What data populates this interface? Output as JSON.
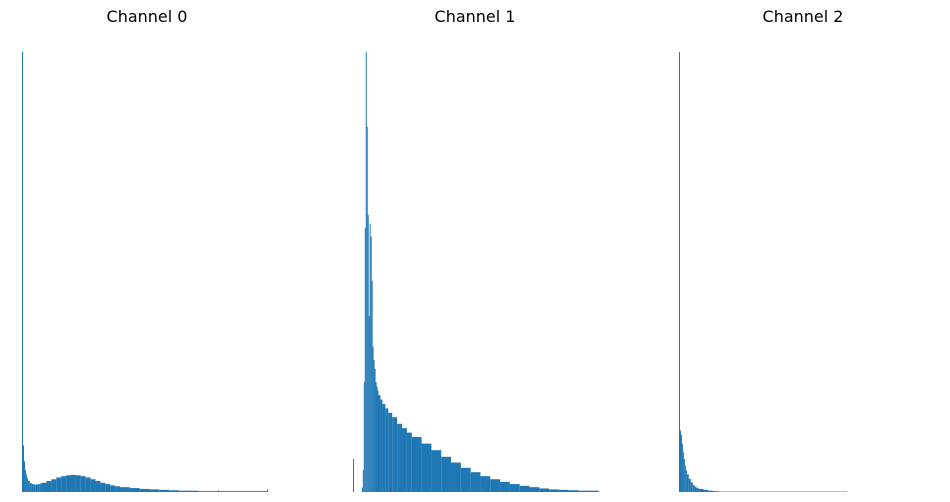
{
  "figure": {
    "bar_color": "#1f77b4",
    "axes_visible": false
  },
  "chart_data": [
    {
      "type": "bar",
      "title": "Channel 0",
      "x": [
        0,
        1,
        2,
        3,
        4,
        5,
        6,
        8,
        10,
        12,
        14,
        16,
        18,
        20,
        25,
        30,
        35,
        40,
        45,
        50,
        55,
        60,
        65,
        70,
        75,
        80,
        85,
        90,
        95,
        100,
        110,
        120,
        130,
        140,
        150,
        160,
        170,
        180,
        190,
        199,
        200,
        201,
        250
      ],
      "values": [
        1.0,
        0.106,
        0.07,
        0.05,
        0.04,
        0.032,
        0.025,
        0.02,
        0.018,
        0.017,
        0.017,
        0.018,
        0.019,
        0.021,
        0.025,
        0.029,
        0.033,
        0.036,
        0.038,
        0.039,
        0.038,
        0.036,
        0.033,
        0.029,
        0.025,
        0.021,
        0.018,
        0.015,
        0.013,
        0.011,
        0.009,
        0.007,
        0.006,
        0.005,
        0.004,
        0.003,
        0.003,
        0.002,
        0.002,
        0.002,
        0.004,
        0.002,
        0.006
      ],
      "xlim": [
        0,
        255
      ],
      "ylim": [
        0,
        1.0
      ]
    },
    {
      "type": "bar",
      "title": "Channel 1",
      "x": [
        0,
        1,
        9,
        10,
        11,
        12,
        13,
        14,
        15,
        16,
        17,
        18,
        19,
        20,
        21,
        22,
        23,
        24,
        25,
        26,
        28,
        30,
        33,
        36,
        40,
        45,
        50,
        55,
        60,
        70,
        80,
        90,
        100,
        110,
        120,
        130,
        140,
        150,
        160,
        170,
        180,
        190,
        200,
        210,
        220,
        230,
        240,
        250
      ],
      "values": [
        0.075,
        0.0,
        0.01,
        0.05,
        0.25,
        0.6,
        1.0,
        0.83,
        0.63,
        0.4,
        0.61,
        0.58,
        0.48,
        0.33,
        0.3,
        0.28,
        0.25,
        0.24,
        0.23,
        0.22,
        0.21,
        0.2,
        0.19,
        0.18,
        0.17,
        0.155,
        0.145,
        0.135,
        0.125,
        0.11,
        0.095,
        0.08,
        0.067,
        0.055,
        0.045,
        0.036,
        0.029,
        0.023,
        0.018,
        0.014,
        0.011,
        0.008,
        0.006,
        0.005,
        0.004,
        0.003,
        0.003,
        0.002
      ],
      "xlim": [
        0,
        255
      ],
      "ylim": [
        0,
        1.0
      ]
    },
    {
      "type": "bar",
      "title": "Channel 2",
      "x": [
        0,
        1,
        2,
        3,
        4,
        5,
        6,
        7,
        8,
        10,
        12,
        14,
        16,
        18,
        20,
        25,
        30,
        35,
        40,
        170
      ],
      "values": [
        1.0,
        0.14,
        0.13,
        0.11,
        0.09,
        0.075,
        0.06,
        0.05,
        0.04,
        0.03,
        0.022,
        0.016,
        0.012,
        0.009,
        0.007,
        0.005,
        0.003,
        0.002,
        0.001,
        0.002
      ],
      "xlim": [
        0,
        255
      ],
      "ylim": [
        0,
        1.0
      ]
    }
  ]
}
